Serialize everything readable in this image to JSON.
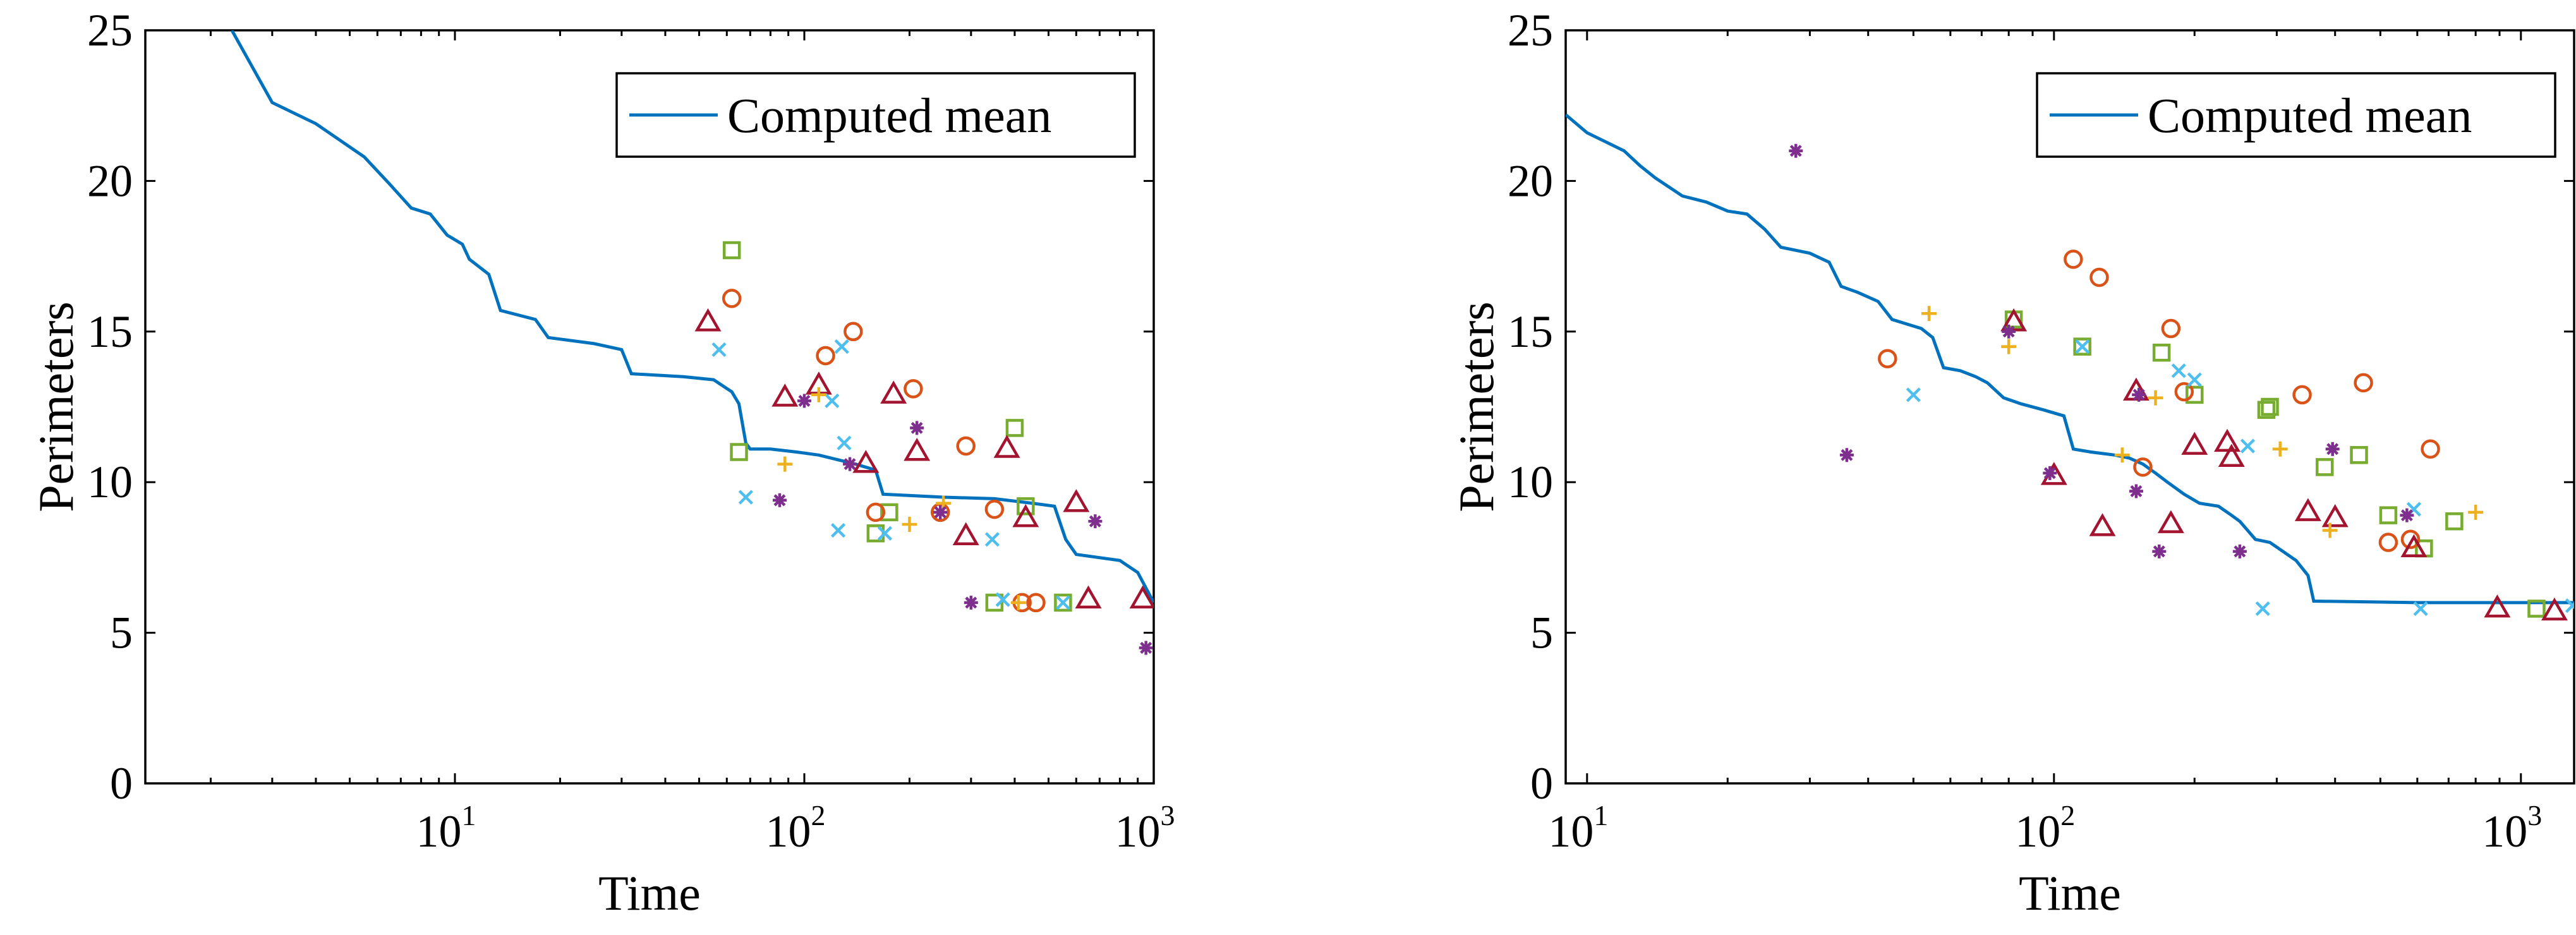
{
  "chart_data": [
    {
      "type": "scatter",
      "title": "",
      "xlabel": "Time",
      "ylabel": "Perimeters",
      "xscale": "log",
      "xlim": [
        1.3,
        1000
      ],
      "ylim": [
        0,
        25
      ],
      "xticks": [
        10,
        100,
        1000
      ],
      "xtick_labels": [
        {
          "base": "10",
          "exp": "1"
        },
        {
          "base": "10",
          "exp": "2"
        },
        {
          "base": "10",
          "exp": "3"
        }
      ],
      "yticks": [
        0,
        5,
        10,
        15,
        20,
        25
      ],
      "grid": false,
      "legend": {
        "position": "top-right",
        "entries": [
          "Computed mean"
        ]
      },
      "line": {
        "name": "Computed mean",
        "color": "#0072BD",
        "points": [
          [
            2.3,
            25
          ],
          [
            3,
            22.6
          ],
          [
            4,
            21.9
          ],
          [
            5.5,
            20.8
          ],
          [
            6.5,
            19.9
          ],
          [
            7.5,
            19.1
          ],
          [
            8.5,
            18.9
          ],
          [
            9.5,
            18.2
          ],
          [
            10.5,
            17.9
          ],
          [
            11,
            17.4
          ],
          [
            12.5,
            16.9
          ],
          [
            13.5,
            15.7
          ],
          [
            17,
            15.4
          ],
          [
            18.5,
            14.8
          ],
          [
            25,
            14.6
          ],
          [
            30,
            14.4
          ],
          [
            32,
            13.6
          ],
          [
            45,
            13.5
          ],
          [
            55,
            13.4
          ],
          [
            62,
            13.0
          ],
          [
            65,
            12.6
          ],
          [
            68,
            11.3
          ],
          [
            70,
            11.1
          ],
          [
            80,
            11.1
          ],
          [
            95,
            11.0
          ],
          [
            110,
            10.9
          ],
          [
            140,
            10.6
          ],
          [
            160,
            10.4
          ],
          [
            168,
            9.6
          ],
          [
            250,
            9.5
          ],
          [
            350,
            9.45
          ],
          [
            450,
            9.3
          ],
          [
            520,
            9.2
          ],
          [
            560,
            8.1
          ],
          [
            600,
            7.6
          ],
          [
            800,
            7.4
          ],
          [
            900,
            7.0
          ],
          [
            1000,
            6.0
          ]
        ]
      },
      "series": [
        {
          "marker": "square",
          "color": "#77AC30",
          "points": [
            [
              62,
              17.7
            ],
            [
              65,
              11.0
            ],
            [
              160,
              8.3
            ],
            [
              175,
              9.0
            ],
            [
              350,
              6.0
            ],
            [
              400,
              11.8
            ],
            [
              430,
              9.2
            ],
            [
              550,
              6.0
            ]
          ]
        },
        {
          "marker": "circle",
          "color": "#D95319",
          "points": [
            [
              62,
              16.1
            ],
            [
              115,
              14.2
            ],
            [
              138,
              15.0
            ],
            [
              160,
              9.0
            ],
            [
              205,
              13.1
            ],
            [
              245,
              9.0
            ],
            [
              290,
              11.2
            ],
            [
              350,
              9.1
            ],
            [
              420,
              6.0
            ],
            [
              460,
              6.0
            ]
          ]
        },
        {
          "marker": "triangle",
          "color": "#A2142F",
          "points": [
            [
              53,
              15.3
            ],
            [
              88,
              12.8
            ],
            [
              110,
              13.2
            ],
            [
              150,
              10.6
            ],
            [
              180,
              12.9
            ],
            [
              210,
              11.0
            ],
            [
              290,
              8.2
            ],
            [
              380,
              11.1
            ],
            [
              430,
              8.8
            ],
            [
              600,
              9.3
            ],
            [
              650,
              6.1
            ],
            [
              930,
              6.1
            ]
          ]
        },
        {
          "marker": "x",
          "color": "#4DBEEE",
          "points": [
            [
              57,
              14.4
            ],
            [
              68,
              9.5
            ],
            [
              120,
              12.7
            ],
            [
              125,
              8.4
            ],
            [
              128,
              14.5
            ],
            [
              130,
              11.3
            ],
            [
              170,
              8.3
            ],
            [
              345,
              8.1
            ],
            [
              370,
              6.1
            ],
            [
              550,
              6.0
            ]
          ]
        },
        {
          "marker": "plus",
          "color": "#EDB120",
          "points": [
            [
              88,
              10.6
            ],
            [
              110,
              12.9
            ],
            [
              200,
              8.6
            ],
            [
              250,
              9.3
            ],
            [
              410,
              6.0
            ]
          ]
        },
        {
          "marker": "asterisk",
          "color": "#7E2F8E",
          "points": [
            [
              85,
              9.4
            ],
            [
              100,
              12.7
            ],
            [
              135,
              10.6
            ],
            [
              210,
              11.8
            ],
            [
              245,
              9.0
            ],
            [
              300,
              6.0
            ],
            [
              680,
              8.7
            ],
            [
              950,
              4.5
            ]
          ]
        }
      ]
    },
    {
      "type": "scatter",
      "title": "",
      "xlabel": "Time",
      "ylabel": "Perimeters",
      "xscale": "log",
      "xlim": [
        9,
        1300
      ],
      "ylim": [
        0,
        25
      ],
      "xticks": [
        10,
        100,
        1000
      ],
      "xtick_labels": [
        {
          "base": "10",
          "exp": "1"
        },
        {
          "base": "10",
          "exp": "2"
        },
        {
          "base": "10",
          "exp": "3"
        }
      ],
      "yticks": [
        0,
        5,
        10,
        15,
        20,
        25
      ],
      "grid": false,
      "legend": {
        "position": "top-right",
        "entries": [
          "Computed mean"
        ]
      },
      "line": {
        "name": "Computed mean",
        "color": "#0072BD",
        "points": [
          [
            9,
            22.2
          ],
          [
            10,
            21.6
          ],
          [
            12,
            21.0
          ],
          [
            13,
            20.5
          ],
          [
            14,
            20.1
          ],
          [
            16,
            19.5
          ],
          [
            18,
            19.3
          ],
          [
            20,
            19.0
          ],
          [
            22,
            18.9
          ],
          [
            24,
            18.4
          ],
          [
            26,
            17.8
          ],
          [
            30,
            17.6
          ],
          [
            33,
            17.3
          ],
          [
            35,
            16.5
          ],
          [
            38,
            16.3
          ],
          [
            42,
            16.0
          ],
          [
            45,
            15.4
          ],
          [
            52,
            15.1
          ],
          [
            55,
            14.8
          ],
          [
            58,
            13.8
          ],
          [
            63,
            13.7
          ],
          [
            68,
            13.5
          ],
          [
            72,
            13.3
          ],
          [
            78,
            12.8
          ],
          [
            85,
            12.6
          ],
          [
            95,
            12.4
          ],
          [
            105,
            12.2
          ],
          [
            110,
            11.1
          ],
          [
            120,
            11.0
          ],
          [
            135,
            10.9
          ],
          [
            145,
            10.8
          ],
          [
            155,
            10.6
          ],
          [
            165,
            10.3
          ],
          [
            175,
            10.0
          ],
          [
            190,
            9.6
          ],
          [
            205,
            9.3
          ],
          [
            225,
            9.2
          ],
          [
            240,
            8.9
          ],
          [
            250,
            8.7
          ],
          [
            270,
            8.1
          ],
          [
            290,
            8.0
          ],
          [
            330,
            7.4
          ],
          [
            350,
            6.9
          ],
          [
            360,
            6.05
          ],
          [
            600,
            6.0
          ],
          [
            800,
            6.0
          ],
          [
            1300,
            6.0
          ]
        ]
      },
      "series": [
        {
          "marker": "square",
          "color": "#77AC30",
          "points": [
            [
              82,
              15.4
            ],
            [
              115,
              14.5
            ],
            [
              170,
              14.3
            ],
            [
              200,
              12.9
            ],
            [
              285,
              12.4
            ],
            [
              290,
              12.5
            ],
            [
              380,
              10.5
            ],
            [
              450,
              10.9
            ],
            [
              520,
              8.9
            ],
            [
              620,
              7.8
            ],
            [
              720,
              8.7
            ],
            [
              1080,
              5.8
            ]
          ]
        },
        {
          "marker": "circle",
          "color": "#D95319",
          "points": [
            [
              44,
              14.1
            ],
            [
              110,
              17.4
            ],
            [
              125,
              16.8
            ],
            [
              155,
              10.5
            ],
            [
              178,
              15.1
            ],
            [
              190,
              13.0
            ],
            [
              340,
              12.9
            ],
            [
              460,
              13.3
            ],
            [
              520,
              8.0
            ],
            [
              580,
              8.1
            ],
            [
              640,
              11.1
            ]
          ]
        },
        {
          "marker": "triangle",
          "color": "#A2142F",
          "points": [
            [
              82,
              15.3
            ],
            [
              100,
              10.2
            ],
            [
              127,
              8.5
            ],
            [
              150,
              13.0
            ],
            [
              178,
              8.6
            ],
            [
              200,
              11.2
            ],
            [
              235,
              11.3
            ],
            [
              240,
              10.8
            ],
            [
              350,
              9.0
            ],
            [
              400,
              8.8
            ],
            [
              590,
              7.8
            ],
            [
              890,
              5.8
            ],
            [
              1180,
              5.7
            ]
          ]
        },
        {
          "marker": "x",
          "color": "#4DBEEE",
          "points": [
            [
              50,
              12.9
            ],
            [
              115,
              14.5
            ],
            [
              185,
              13.7
            ],
            [
              200,
              13.4
            ],
            [
              260,
              11.2
            ],
            [
              280,
              5.8
            ],
            [
              590,
              9.1
            ],
            [
              610,
              5.8
            ],
            [
              1290,
              5.9
            ]
          ]
        },
        {
          "marker": "plus",
          "color": "#EDB120",
          "points": [
            [
              54,
              15.6
            ],
            [
              80,
              14.5
            ],
            [
              140,
              10.9
            ],
            [
              165,
              12.8
            ],
            [
              305,
              11.1
            ],
            [
              390,
              8.4
            ],
            [
              800,
              9.0
            ]
          ]
        },
        {
          "marker": "asterisk",
          "color": "#7E2F8E",
          "points": [
            [
              28,
              21.0
            ],
            [
              36,
              10.9
            ],
            [
              80,
              15.0
            ],
            [
              98,
              10.3
            ],
            [
              150,
              9.7
            ],
            [
              152,
              12.9
            ],
            [
              168,
              7.7
            ],
            [
              250,
              7.7
            ],
            [
              395,
              11.1
            ],
            [
              570,
              8.9
            ]
          ]
        }
      ]
    }
  ]
}
